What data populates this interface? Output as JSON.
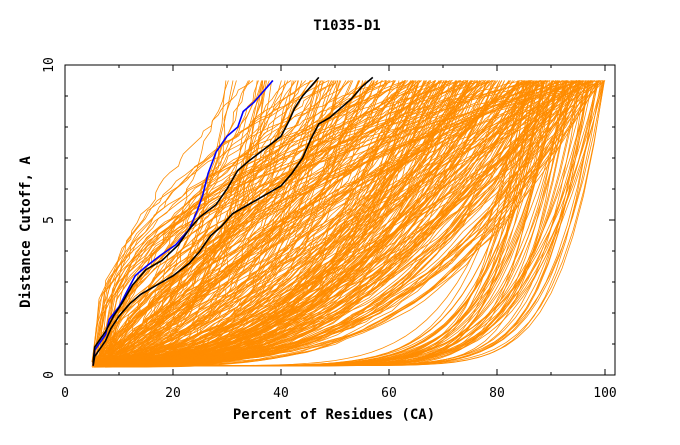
{
  "chart_data": {
    "type": "line",
    "title": "T1035-D1",
    "xlabel": "Percent of Residues (CA)",
    "ylabel": "Distance Cutoff, A",
    "xlim": [
      0,
      100
    ],
    "ylim": [
      0,
      10
    ],
    "x_ticks": [
      0,
      20,
      40,
      60,
      80,
      100
    ],
    "y_ticks": [
      0,
      5,
      10
    ],
    "x_tick_labels": [
      "0",
      "20",
      "40",
      "60",
      "80",
      "100"
    ],
    "y_tick_labels": [
      "0",
      "5",
      "10"
    ],
    "grid": false,
    "colors": {
      "models": "#ff8c00",
      "highlight_blue": "#0000ff",
      "highlight_black": "#000000"
    },
    "highlight_series": [
      {
        "color": "#0000ff",
        "points": [
          [
            5.2,
            0.3
          ],
          [
            5.5,
            0.8
          ],
          [
            7.5,
            1.3
          ],
          [
            8.2,
            1.8
          ],
          [
            10,
            2.2
          ],
          [
            11.5,
            2.7
          ],
          [
            13,
            3.2
          ],
          [
            15,
            3.5
          ],
          [
            18,
            3.9
          ],
          [
            20.5,
            4.2
          ],
          [
            23,
            4.7
          ],
          [
            24.5,
            5.3
          ],
          [
            25.5,
            5.8
          ],
          [
            26.5,
            6.5
          ],
          [
            28,
            7.2
          ],
          [
            30,
            7.7
          ],
          [
            32,
            8.0
          ],
          [
            33,
            8.5
          ],
          [
            35,
            8.8
          ],
          [
            36.5,
            9.1
          ],
          [
            37.5,
            9.3
          ],
          [
            38.5,
            9.5
          ]
        ]
      },
      {
        "color": "#000000",
        "points": [
          [
            5.2,
            0.3
          ],
          [
            5.5,
            0.6
          ],
          [
            7.5,
            1.1
          ],
          [
            8.5,
            1.5
          ],
          [
            10,
            1.9
          ],
          [
            12,
            2.3
          ],
          [
            14,
            2.6
          ],
          [
            17,
            2.9
          ],
          [
            20,
            3.2
          ],
          [
            23,
            3.6
          ],
          [
            25,
            4.0
          ],
          [
            27,
            4.5
          ],
          [
            29,
            4.8
          ],
          [
            31,
            5.2
          ],
          [
            34,
            5.5
          ],
          [
            37,
            5.8
          ],
          [
            40,
            6.1
          ],
          [
            42,
            6.5
          ],
          [
            44,
            7.0
          ],
          [
            45.5,
            7.6
          ],
          [
            47,
            8.1
          ],
          [
            49,
            8.3
          ],
          [
            51,
            8.6
          ],
          [
            53,
            8.9
          ],
          [
            55,
            9.3
          ],
          [
            57,
            9.6
          ]
        ]
      },
      {
        "color": "#000000",
        "points": [
          [
            5.2,
            0.4
          ],
          [
            5.5,
            0.9
          ],
          [
            7.5,
            1.4
          ],
          [
            9,
            1.9
          ],
          [
            10.5,
            2.3
          ],
          [
            12.5,
            2.9
          ],
          [
            15,
            3.4
          ],
          [
            18,
            3.7
          ],
          [
            21,
            4.2
          ],
          [
            23,
            4.7
          ],
          [
            25,
            5.1
          ],
          [
            28,
            5.5
          ],
          [
            30,
            6.0
          ],
          [
            32,
            6.6
          ],
          [
            34,
            6.9
          ],
          [
            37,
            7.3
          ],
          [
            40,
            7.7
          ],
          [
            41.5,
            8.2
          ],
          [
            42.5,
            8.6
          ],
          [
            44,
            9.0
          ],
          [
            45.5,
            9.3
          ],
          [
            47,
            9.6
          ]
        ]
      }
    ]
  }
}
